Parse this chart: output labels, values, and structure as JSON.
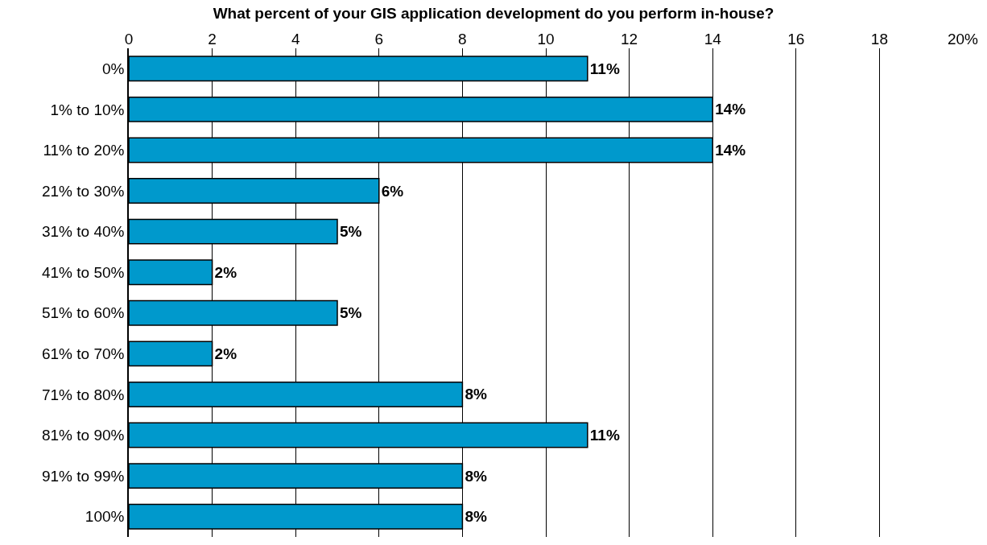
{
  "chart_data": {
    "type": "bar",
    "orientation": "horizontal",
    "title": "What percent of your GIS application development do you perform in-house?",
    "categories": [
      "0%",
      "1% to 10%",
      "11% to 20%",
      "21% to 30%",
      "31% to 40%",
      "41% to 50%",
      "51% to 60%",
      "61% to 70%",
      "71% to 80%",
      "81% to 90%",
      "91% to 99%",
      "100%"
    ],
    "values": [
      11,
      14,
      14,
      6,
      5,
      2,
      5,
      2,
      8,
      11,
      8,
      8
    ],
    "value_labels": [
      "11%",
      "14%",
      "14%",
      "6%",
      "5%",
      "2%",
      "5%",
      "2%",
      "8%",
      "11%",
      "8%",
      "8%"
    ],
    "color": "#0099cc",
    "xlim": [
      0,
      20
    ],
    "xticks": [
      0,
      2,
      4,
      6,
      8,
      10,
      12,
      14,
      16,
      18,
      {
        "value": 20,
        "label": "20%"
      }
    ],
    "grid": "x",
    "legend": false
  }
}
